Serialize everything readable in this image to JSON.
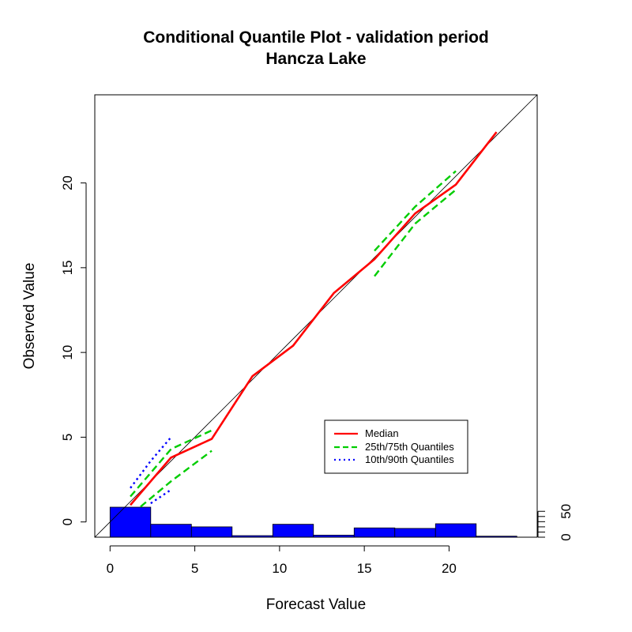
{
  "chart_data": {
    "type": "line",
    "title": "Conditional Quantile Plot - validation period",
    "subtitle": "Hancza Lake",
    "xlabel": "Forecast Value",
    "ylabel": "Observed Value",
    "xlim": [
      -0.9,
      25.2
    ],
    "ylim": [
      -0.9,
      25.2
    ],
    "x_ticks": [
      "0",
      "5",
      "10",
      "15",
      "20"
    ],
    "y_ticks": [
      "0",
      "5",
      "10",
      "15",
      "20"
    ],
    "grid": false,
    "reference_line": "y = x",
    "colors": {
      "median": "#ff0000",
      "q25_75": "#00cd00",
      "q10_90": "#0000ff",
      "histogram": "#0000ff"
    },
    "series": [
      {
        "name": "Median",
        "style": "solid",
        "segments": [
          [
            [
              1.2,
              1.0
            ],
            [
              3.6,
              3.8
            ],
            [
              6.0,
              4.9
            ],
            [
              8.4,
              8.6
            ],
            [
              10.8,
              10.4
            ],
            [
              13.2,
              13.5
            ],
            [
              15.6,
              15.5
            ],
            [
              18.0,
              18.2
            ],
            [
              20.4,
              19.9
            ],
            [
              22.8,
              23.0
            ]
          ]
        ]
      },
      {
        "name": "25th/75th Quantiles",
        "style": "dashed",
        "segments": [
          [
            [
              1.2,
              1.5
            ],
            [
              3.6,
              4.3
            ],
            [
              6.0,
              5.4
            ]
          ],
          [
            [
              1.8,
              0.9
            ],
            [
              3.6,
              2.4
            ],
            [
              6.0,
              4.2
            ]
          ],
          [
            [
              15.6,
              16.0
            ],
            [
              18.0,
              18.6
            ],
            [
              20.4,
              20.7
            ]
          ],
          [
            [
              15.6,
              14.5
            ],
            [
              18.0,
              17.6
            ],
            [
              20.4,
              19.6
            ]
          ]
        ]
      },
      {
        "name": "10th/90th Quantiles",
        "style": "dotted",
        "segments": [
          [
            [
              1.2,
              2.0
            ],
            [
              2.4,
              3.6
            ],
            [
              3.6,
              5.0
            ]
          ],
          [
            [
              2.4,
              1.1
            ],
            [
              3.6,
              1.9
            ]
          ]
        ]
      }
    ],
    "legend": {
      "position": "bottom-right",
      "entries": [
        "Median",
        "25th/75th Quantiles",
        "10th/90th Quantiles"
      ]
    },
    "histogram": {
      "bin_edges": [
        0,
        2.4,
        4.8,
        7.2,
        9.6,
        12.0,
        14.4,
        16.8,
        19.2,
        21.6,
        24.0
      ],
      "counts": [
        58,
        25,
        20,
        3,
        25,
        4,
        18,
        17,
        26,
        2
      ],
      "secondary_axis_ticks": [
        "0",
        "50"
      ],
      "secondary_axis_range": [
        0,
        58
      ]
    }
  }
}
